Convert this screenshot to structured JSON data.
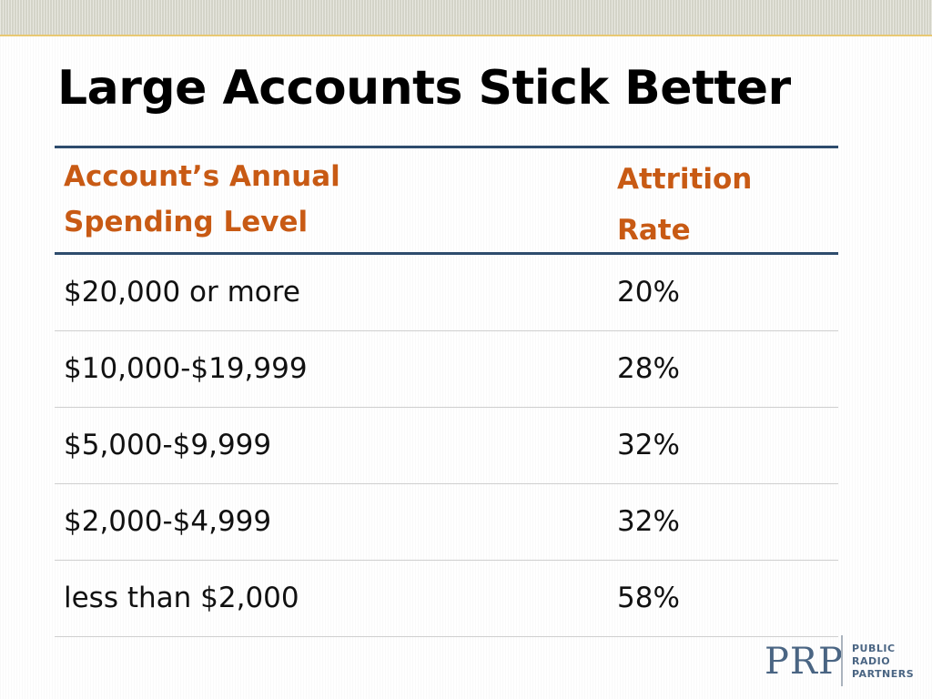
{
  "title": "Large Accounts Stick Better",
  "table": {
    "headers": {
      "col1_line1": "Account’s Annual",
      "col1_line2": "Spending Level",
      "col2_line1": "Attrition",
      "col2_line2": "Rate"
    },
    "rows": [
      {
        "level": "$20,000 or more",
        "rate": "20%"
      },
      {
        "level": "$10,000-$19,999",
        "rate": "28%"
      },
      {
        "level": "$5,000-$9,999",
        "rate": "32%"
      },
      {
        "level": "$2,000-$4,999",
        "rate": "32%"
      },
      {
        "level": "less than $2,000",
        "rate": "58%"
      }
    ]
  },
  "logo": {
    "mark": "PRP",
    "line1": "PUBLIC",
    "line2": "RADIO",
    "line3": "PARTNERS"
  },
  "colors": {
    "header_text": "#c85a14",
    "rule": "#2e4c6d",
    "logo": "#4a6583",
    "accent_line": "#e8c872"
  }
}
